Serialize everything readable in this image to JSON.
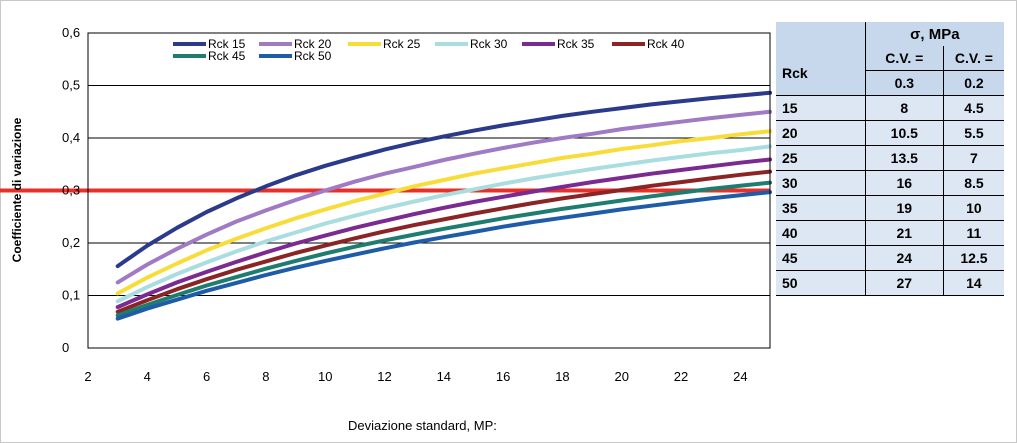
{
  "chart_data": {
    "type": "line",
    "title": "",
    "xlabel": "Deviazione standard, MP:",
    "ylabel": "Coefficiente di variazione",
    "xlim": [
      2,
      25
    ],
    "ylim": [
      0,
      0.6
    ],
    "x_ticks": [
      "2",
      "4",
      "6",
      "8",
      "10",
      "12",
      "14",
      "16",
      "18",
      "20",
      "22",
      "24"
    ],
    "y_ticks": [
      "0",
      "0,1",
      "0,2",
      "0,3",
      "0,4",
      "0,5",
      "0,6"
    ],
    "grid": "horizontal",
    "legend_position": "top",
    "x": [
      3,
      4,
      5,
      6,
      7,
      8,
      9,
      10,
      11,
      12,
      13,
      14,
      15,
      16,
      17,
      18,
      19,
      20,
      21,
      22,
      23,
      24,
      25
    ],
    "series": [
      {
        "name": "Rck 15",
        "color": "#2b3a8a",
        "values": [
          0.156,
          0.195,
          0.229,
          0.259,
          0.285,
          0.308,
          0.329,
          0.347,
          0.363,
          0.378,
          0.391,
          0.403,
          0.414,
          0.424,
          0.433,
          0.442,
          0.45,
          0.457,
          0.464,
          0.47,
          0.476,
          0.481,
          0.486
        ]
      },
      {
        "name": "Rck 20",
        "color": "#a07ac4",
        "values": [
          0.125,
          0.159,
          0.189,
          0.216,
          0.241,
          0.262,
          0.282,
          0.3,
          0.317,
          0.332,
          0.345,
          0.358,
          0.37,
          0.381,
          0.391,
          0.4,
          0.408,
          0.417,
          0.424,
          0.431,
          0.438,
          0.444,
          0.45
        ]
      },
      {
        "name": "Rck 25",
        "color": "#f7dc3a",
        "values": [
          0.104,
          0.134,
          0.161,
          0.186,
          0.208,
          0.228,
          0.247,
          0.264,
          0.28,
          0.294,
          0.308,
          0.32,
          0.332,
          0.342,
          0.352,
          0.362,
          0.37,
          0.379,
          0.386,
          0.394,
          0.4,
          0.407,
          0.413
        ]
      },
      {
        "name": "Rck 30",
        "color": "#a9dde0",
        "values": [
          0.089,
          0.116,
          0.141,
          0.163,
          0.184,
          0.203,
          0.22,
          0.237,
          0.252,
          0.266,
          0.279,
          0.291,
          0.302,
          0.313,
          0.323,
          0.332,
          0.341,
          0.349,
          0.357,
          0.364,
          0.371,
          0.377,
          0.384
        ]
      },
      {
        "name": "Rck 35",
        "color": "#7a2a90",
        "values": [
          0.078,
          0.102,
          0.125,
          0.145,
          0.164,
          0.182,
          0.199,
          0.214,
          0.229,
          0.242,
          0.255,
          0.267,
          0.278,
          0.288,
          0.298,
          0.307,
          0.316,
          0.324,
          0.332,
          0.339,
          0.346,
          0.353,
          0.359
        ]
      },
      {
        "name": "Rck 40",
        "color": "#8b2525",
        "values": [
          0.069,
          0.091,
          0.112,
          0.131,
          0.149,
          0.165,
          0.181,
          0.195,
          0.209,
          0.222,
          0.234,
          0.245,
          0.256,
          0.266,
          0.276,
          0.285,
          0.293,
          0.301,
          0.309,
          0.316,
          0.323,
          0.33,
          0.336
        ]
      },
      {
        "name": "Rck 45",
        "color": "#1f7d70",
        "values": [
          0.062,
          0.082,
          0.101,
          0.119,
          0.135,
          0.151,
          0.166,
          0.18,
          0.193,
          0.205,
          0.216,
          0.227,
          0.237,
          0.247,
          0.256,
          0.265,
          0.273,
          0.281,
          0.289,
          0.296,
          0.303,
          0.309,
          0.315
        ]
      },
      {
        "name": "Rck 50",
        "color": "#1f5ca8",
        "values": [
          0.056,
          0.075,
          0.092,
          0.109,
          0.124,
          0.139,
          0.153,
          0.166,
          0.178,
          0.19,
          0.201,
          0.211,
          0.221,
          0.231,
          0.24,
          0.248,
          0.256,
          0.264,
          0.271,
          0.278,
          0.285,
          0.291,
          0.297
        ]
      }
    ],
    "reference_line": {
      "y": 0.3,
      "color": "#e8302a"
    }
  },
  "table": {
    "sigma_header": "σ, MPa",
    "rck_header": "Rck",
    "cv_label": "C.V. =",
    "cv_values": [
      "0.3",
      "0.2"
    ],
    "rows": [
      {
        "rck": "15",
        "s1": "8",
        "s2": "4.5"
      },
      {
        "rck": "20",
        "s1": "10.5",
        "s2": "5.5"
      },
      {
        "rck": "25",
        "s1": "13.5",
        "s2": "7"
      },
      {
        "rck": "30",
        "s1": "16",
        "s2": "8.5"
      },
      {
        "rck": "35",
        "s1": "19",
        "s2": "10"
      },
      {
        "rck": "40",
        "s1": "21",
        "s2": "11"
      },
      {
        "rck": "45",
        "s1": "24",
        "s2": "12.5"
      },
      {
        "rck": "50",
        "s1": "27",
        "s2": "14"
      }
    ]
  }
}
